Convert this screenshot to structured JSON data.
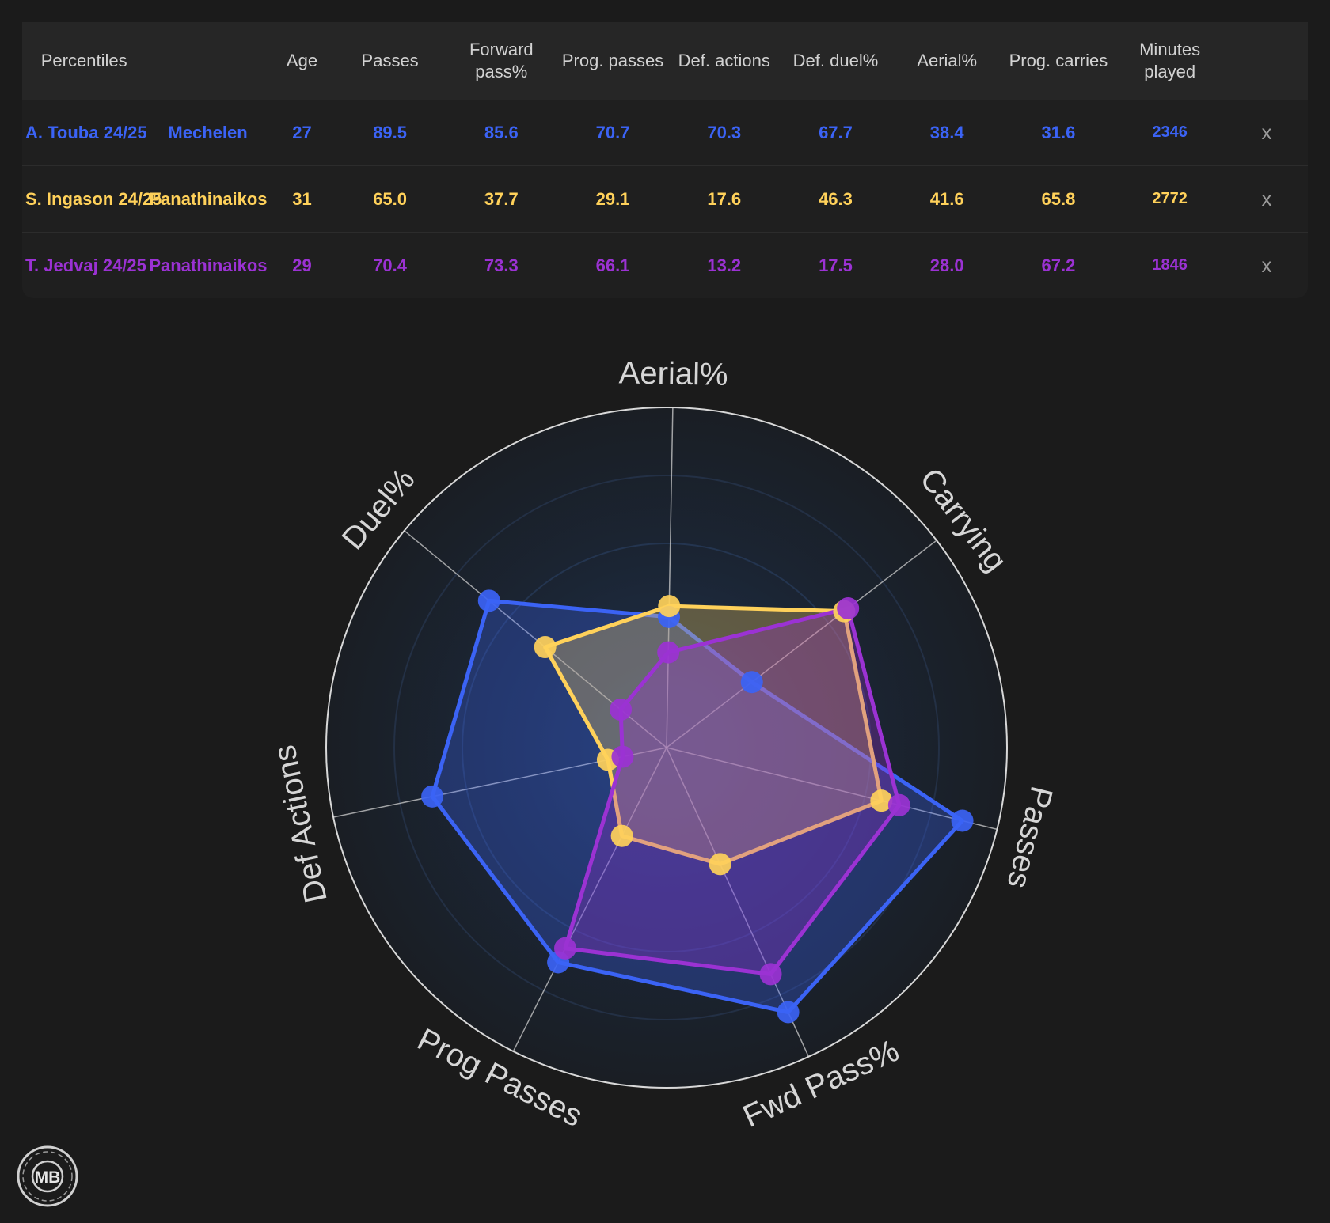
{
  "table": {
    "headers": [
      "Percentiles",
      "",
      "Age",
      "Passes",
      "Forward pass%",
      "Prog. passes",
      "Def. actions",
      "Def. duel%",
      "Aerial%",
      "Prog. carries",
      "Minutes played"
    ],
    "remove_label": "x",
    "rows": [
      {
        "player": "A. Touba 24/25",
        "team": "Mechelen",
        "color": "#3b63f5",
        "cells": [
          "27",
          "89.5",
          "85.6",
          "70.7",
          "70.3",
          "67.7",
          "38.4",
          "31.6",
          "2346"
        ]
      },
      {
        "player": "S. Ingason 24/25",
        "team": "Panathinaikos",
        "color": "#ffd15a",
        "cells": [
          "31",
          "65.0",
          "37.7",
          "29.1",
          "17.6",
          "46.3",
          "41.6",
          "65.8",
          "2772"
        ]
      },
      {
        "player": "T. Jedvaj 24/25",
        "team": "Panathinaikos",
        "color": "#9b32d3",
        "cells": [
          "29",
          "70.4",
          "73.3",
          "66.1",
          "13.2",
          "17.5",
          "28.0",
          "67.2",
          "1846"
        ]
      }
    ]
  },
  "chart_data": {
    "type": "radar",
    "axes": [
      "Aerial%",
      "Carrying",
      "Passes",
      "Fwd Pass%",
      "Prog Passes",
      "Def Actions",
      "Duel%"
    ],
    "range": [
      0,
      100
    ],
    "series": [
      {
        "name": "A. Touba 24/25",
        "color": "#3b63f5",
        "values": [
          38.4,
          31.6,
          89.5,
          85.6,
          70.7,
          70.3,
          67.7
        ]
      },
      {
        "name": "S. Ingason 24/25",
        "color": "#ffd15a",
        "values": [
          41.6,
          65.8,
          65.0,
          37.7,
          29.1,
          17.6,
          46.3
        ]
      },
      {
        "name": "T. Jedvaj 24/25",
        "color": "#9b32d3",
        "values": [
          28.0,
          67.2,
          70.4,
          73.3,
          66.1,
          13.2,
          17.5
        ]
      }
    ]
  },
  "logo": {
    "text": "MB"
  }
}
